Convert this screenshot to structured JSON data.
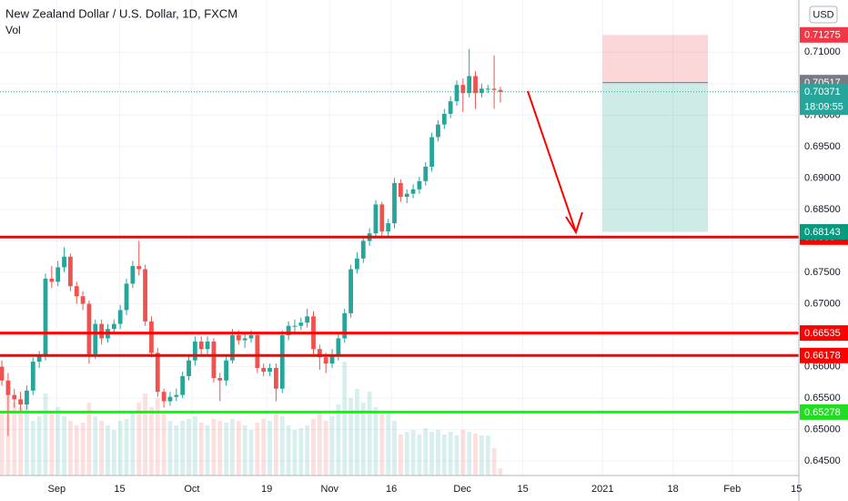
{
  "chart_data": {
    "type": "candlestick",
    "title": "New Zealand Dollar / U.S. Dollar, 1D, FXCM",
    "volume_label": "Vol",
    "currency": "USD",
    "up_color": "#26a69a",
    "down_color": "#ef5350",
    "xlim": [
      -0.3,
      127.9
    ],
    "xticks": [
      {
        "value": 8.8,
        "label": "Sep"
      },
      {
        "value": 18.9,
        "label": "15"
      },
      {
        "value": 30.5,
        "label": "Oct"
      },
      {
        "value": 42.5,
        "label": "19"
      },
      {
        "value": 52.6,
        "label": "Nov"
      },
      {
        "value": 62.5,
        "label": "16"
      },
      {
        "value": 73.9,
        "label": "Dec"
      },
      {
        "value": 83.6,
        "label": "15"
      },
      {
        "value": 96.4,
        "label": "2021"
      },
      {
        "value": 107.7,
        "label": "18"
      },
      {
        "value": 117.2,
        "label": "Feb"
      },
      {
        "value": 127.5,
        "label": "15"
      }
    ],
    "ylim": [
      0.6427,
      0.7183
    ],
    "yticks": [
      {
        "value": 0.645,
        "label": "0.64500"
      },
      {
        "value": 0.65,
        "label": "0.65000"
      },
      {
        "value": 0.655,
        "label": "0.65500"
      },
      {
        "value": 0.66,
        "label": "0.66000"
      },
      {
        "value": 0.665,
        "label": "0.66500"
      },
      {
        "value": 0.67,
        "label": "0.67000"
      },
      {
        "value": 0.675,
        "label": "0.67500"
      },
      {
        "value": 0.68,
        "label": "0.68000"
      },
      {
        "value": 0.685,
        "label": "0.68500"
      },
      {
        "value": 0.69,
        "label": "0.69000"
      },
      {
        "value": 0.695,
        "label": "0.69500"
      },
      {
        "value": 0.7,
        "label": "0.70000"
      },
      {
        "value": 0.705,
        "label": "0.70500"
      },
      {
        "value": 0.71,
        "label": "0.71000"
      }
    ],
    "vlim": [
      0,
      150
    ],
    "open": [
      0.66,
      0.6578,
      0.6555,
      0.6548,
      0.654,
      0.6562,
      0.6608,
      0.6618,
      0.674,
      0.6735,
      0.6758,
      0.6775,
      0.6728,
      0.6712,
      0.67,
      0.662,
      0.6668,
      0.6645,
      0.666,
      0.6668,
      0.669,
      0.6732,
      0.676,
      0.6755,
      0.6672,
      0.6622,
      0.656,
      0.6545,
      0.6552,
      0.6555,
      0.6585,
      0.661,
      0.664,
      0.6628,
      0.664,
      0.6582,
      0.6578,
      0.661,
      0.665,
      0.6642,
      0.6645,
      0.665,
      0.6598,
      0.6592,
      0.6598,
      0.6565,
      0.665,
      0.6665,
      0.6665,
      0.667,
      0.668,
      0.6628,
      0.6615,
      0.6605,
      0.6618,
      0.6645,
      0.6685,
      0.6755,
      0.6772,
      0.68,
      0.6812,
      0.6858,
      0.6815,
      0.6828,
      0.6892,
      0.687,
      0.6875,
      0.6882,
      0.6895,
      0.6918,
      0.6965,
      0.6985,
      0.7002,
      0.7022,
      0.7048,
      0.7035,
      0.7062,
      0.7035,
      0.7042,
      0.7042,
      0.704
    ],
    "high": [
      0.661,
      0.659,
      0.6565,
      0.656,
      0.657,
      0.6615,
      0.6625,
      0.6748,
      0.676,
      0.6768,
      0.679,
      0.678,
      0.6735,
      0.672,
      0.6705,
      0.6675,
      0.6675,
      0.6668,
      0.6675,
      0.6698,
      0.674,
      0.6768,
      0.68,
      0.6762,
      0.668,
      0.663,
      0.6565,
      0.656,
      0.6565,
      0.6592,
      0.6618,
      0.6648,
      0.6648,
      0.6648,
      0.6645,
      0.659,
      0.6618,
      0.666,
      0.6658,
      0.6655,
      0.6658,
      0.6655,
      0.6605,
      0.6605,
      0.6605,
      0.6658,
      0.6672,
      0.6675,
      0.6678,
      0.6692,
      0.6688,
      0.6635,
      0.6622,
      0.6628,
      0.6655,
      0.6692,
      0.6762,
      0.6782,
      0.6808,
      0.682,
      0.6865,
      0.6862,
      0.6835,
      0.69,
      0.6898,
      0.6882,
      0.689,
      0.6902,
      0.6925,
      0.6972,
      0.6992,
      0.701,
      0.703,
      0.7055,
      0.7058,
      0.7105,
      0.707,
      0.705,
      0.7048,
      0.7095,
      0.7045
    ],
    "low": [
      0.657,
      0.649,
      0.6535,
      0.653,
      0.6532,
      0.6555,
      0.6598,
      0.661,
      0.6725,
      0.6728,
      0.675,
      0.672,
      0.67,
      0.669,
      0.6605,
      0.6612,
      0.6635,
      0.6638,
      0.6652,
      0.666,
      0.6682,
      0.6725,
      0.6745,
      0.6665,
      0.6615,
      0.6552,
      0.6535,
      0.6538,
      0.6545,
      0.655,
      0.6578,
      0.6602,
      0.662,
      0.662,
      0.6575,
      0.6545,
      0.657,
      0.6605,
      0.6635,
      0.663,
      0.6638,
      0.659,
      0.6585,
      0.6585,
      0.6545,
      0.6558,
      0.6642,
      0.6655,
      0.6658,
      0.6662,
      0.662,
      0.6595,
      0.659,
      0.6598,
      0.661,
      0.6638,
      0.6678,
      0.6748,
      0.6765,
      0.6792,
      0.6805,
      0.6808,
      0.6805,
      0.682,
      0.6862,
      0.686,
      0.6868,
      0.6875,
      0.6888,
      0.691,
      0.6958,
      0.6978,
      0.6995,
      0.7015,
      0.7005,
      0.7028,
      0.701,
      0.7028,
      0.7035,
      0.701,
      0.702
    ],
    "close": [
      0.6578,
      0.6555,
      0.6548,
      0.654,
      0.6562,
      0.6608,
      0.6618,
      0.674,
      0.6735,
      0.6758,
      0.6775,
      0.6728,
      0.6712,
      0.67,
      0.662,
      0.6668,
      0.6645,
      0.666,
      0.6668,
      0.669,
      0.6732,
      0.676,
      0.6755,
      0.6672,
      0.6622,
      0.656,
      0.6545,
      0.6552,
      0.6555,
      0.6585,
      0.661,
      0.664,
      0.6628,
      0.664,
      0.6582,
      0.6578,
      0.661,
      0.665,
      0.6642,
      0.6645,
      0.665,
      0.6598,
      0.6592,
      0.6598,
      0.6565,
      0.665,
      0.6665,
      0.6665,
      0.667,
      0.668,
      0.6628,
      0.6615,
      0.6605,
      0.6618,
      0.6645,
      0.6685,
      0.6755,
      0.6772,
      0.68,
      0.6812,
      0.6858,
      0.6815,
      0.6828,
      0.6892,
      0.687,
      0.6875,
      0.6882,
      0.6895,
      0.6918,
      0.6965,
      0.6985,
      0.7002,
      0.7022,
      0.7048,
      0.7035,
      0.7062,
      0.7035,
      0.7042,
      0.7042,
      0.704,
      0.7037
    ],
    "volume": [
      70,
      95,
      80,
      75,
      85,
      60,
      65,
      90,
      70,
      75,
      65,
      60,
      55,
      58,
      80,
      65,
      60,
      55,
      50,
      60,
      62,
      70,
      80,
      90,
      75,
      85,
      70,
      60,
      55,
      60,
      62,
      65,
      58,
      55,
      62,
      60,
      58,
      62,
      60,
      55,
      50,
      58,
      62,
      60,
      70,
      65,
      55,
      50,
      52,
      55,
      62,
      70,
      60,
      65,
      78,
      125,
      85,
      95,
      80,
      92,
      75,
      70,
      68,
      60,
      45,
      48,
      50,
      45,
      52,
      48,
      50,
      45,
      48,
      44,
      50,
      48,
      46,
      44,
      44,
      30,
      8
    ],
    "levels": [
      {
        "value": 0.6806,
        "color": "#ff0000"
      },
      {
        "value": 0.66535,
        "color": "#ff0000"
      },
      {
        "value": 0.66178,
        "color": "#ff0000"
      },
      {
        "value": 0.65278,
        "color": "#00ff00"
      }
    ],
    "position_tool": {
      "x_start": 96.4,
      "x_end": 113.3,
      "top": 0.71275,
      "entry": 0.70517,
      "bottom": 0.68143
    },
    "last_price": 0.70371,
    "countdown": "18:09:55"
  }
}
